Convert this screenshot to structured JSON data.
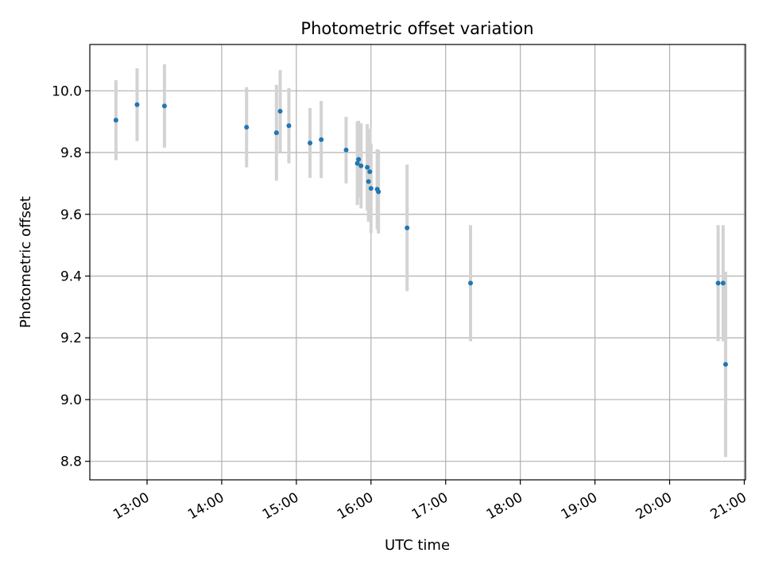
{
  "chart_data": {
    "type": "scatter",
    "title": "Photometric offset variation",
    "xlabel": "UTC time",
    "ylabel": "Photometric offset",
    "x_tick_labels": [
      "13:00",
      "14:00",
      "15:00",
      "16:00",
      "17:00",
      "18:00",
      "19:00",
      "20:00",
      "21:00"
    ],
    "y_tick_labels": [
      "8.8",
      "9.0",
      "9.2",
      "9.4",
      "9.6",
      "9.8",
      "10.0"
    ],
    "xlim": [
      "12:25",
      "21:00"
    ],
    "ylim": [
      8.75,
      10.15
    ],
    "grid": true,
    "colors": {
      "marker": "#1f77b4",
      "errorbar": "#d3d3d3",
      "grid": "#b0b0b0"
    },
    "series": [
      {
        "points": [
          {
            "time": "12:35",
            "y": 9.905,
            "err": 0.13
          },
          {
            "time": "12:52",
            "y": 9.955,
            "err": 0.118
          },
          {
            "time": "13:14",
            "y": 9.951,
            "err": 0.135
          },
          {
            "time": "14:20",
            "y": 9.882,
            "err": 0.13
          },
          {
            "time": "14:44",
            "y": 9.864,
            "err": 0.155
          },
          {
            "time": "14:47",
            "y": 9.934,
            "err": 0.133
          },
          {
            "time": "14:54",
            "y": 9.887,
            "err": 0.122
          },
          {
            "time": "15:11",
            "y": 9.831,
            "err": 0.113
          },
          {
            "time": "15:20",
            "y": 9.842,
            "err": 0.125
          },
          {
            "time": "15:40",
            "y": 9.808,
            "err": 0.108
          },
          {
            "time": "15:49",
            "y": 9.765,
            "err": 0.135
          },
          {
            "time": "15:50",
            "y": 9.778,
            "err": 0.125
          },
          {
            "time": "15:52",
            "y": 9.757,
            "err": 0.138
          },
          {
            "time": "15:57",
            "y": 9.752,
            "err": 0.14
          },
          {
            "time": "15:58",
            "y": 9.706,
            "err": 0.13
          },
          {
            "time": "15:59",
            "y": 9.738,
            "err": 0.14
          },
          {
            "time": "16:00",
            "y": 9.684,
            "err": 0.145
          },
          {
            "time": "16:05",
            "y": 9.681,
            "err": 0.13
          },
          {
            "time": "16:06",
            "y": 9.673,
            "err": 0.135
          },
          {
            "time": "16:29",
            "y": 9.556,
            "err": 0.205
          },
          {
            "time": "17:20",
            "y": 9.377,
            "err": 0.188
          },
          {
            "time": "20:39",
            "y": 9.377,
            "err": 0.188
          },
          {
            "time": "20:43",
            "y": 9.377,
            "err": 0.188
          },
          {
            "time": "20:45",
            "y": 9.114,
            "err": 0.3
          }
        ]
      }
    ]
  }
}
